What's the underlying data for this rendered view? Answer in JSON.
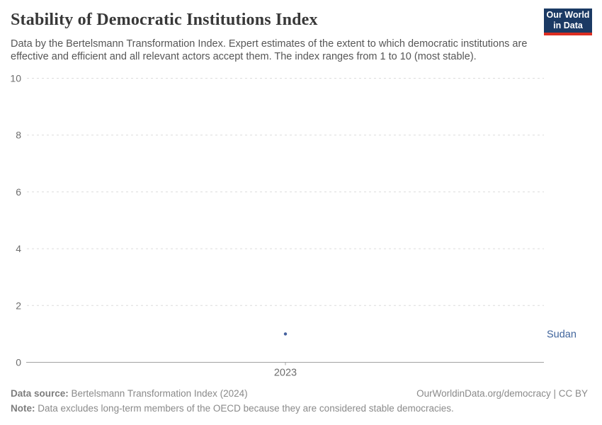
{
  "header": {
    "title": "Stability of Democratic Institutions Index",
    "subtitle": "Data by the Bertelsmann Transformation Index. Expert estimates of the extent to which democratic institutions are effective and efficient and all relevant actors accept them. The index ranges from 1 to 10 (most stable).",
    "logo": {
      "line1": "Our World",
      "line2": "in Data",
      "bg_color": "#1b3a64",
      "stripe_color": "#dc2e21"
    }
  },
  "chart_data": {
    "type": "scatter",
    "x": [
      2023
    ],
    "series": [
      {
        "name": "Sudan",
        "values": [
          1
        ],
        "color": "#44619e",
        "label_color": "#41659c"
      }
    ],
    "title": "Stability of Democratic Institutions Index",
    "xlabel": "",
    "ylabel": "",
    "ylim": [
      0,
      10
    ],
    "yticks": [
      0,
      2,
      4,
      6,
      8,
      10
    ],
    "xticks": [
      "2023"
    ],
    "grid": "horizontal-dashed",
    "legend": "entity-label-right",
    "gridline_color": "#dcdcdc",
    "axis_color": "#a1a1a1",
    "tick_label_color": "#6e6e6e"
  },
  "footer": {
    "data_source_label": "Data source:",
    "data_source_text": " Bertelsmann Transformation Index (2024)",
    "attribution": "OurWorldinData.org/democracy | CC BY",
    "note_label": "Note:",
    "note_text": " Data excludes long-term members of the OECD because they are considered stable democracies."
  }
}
